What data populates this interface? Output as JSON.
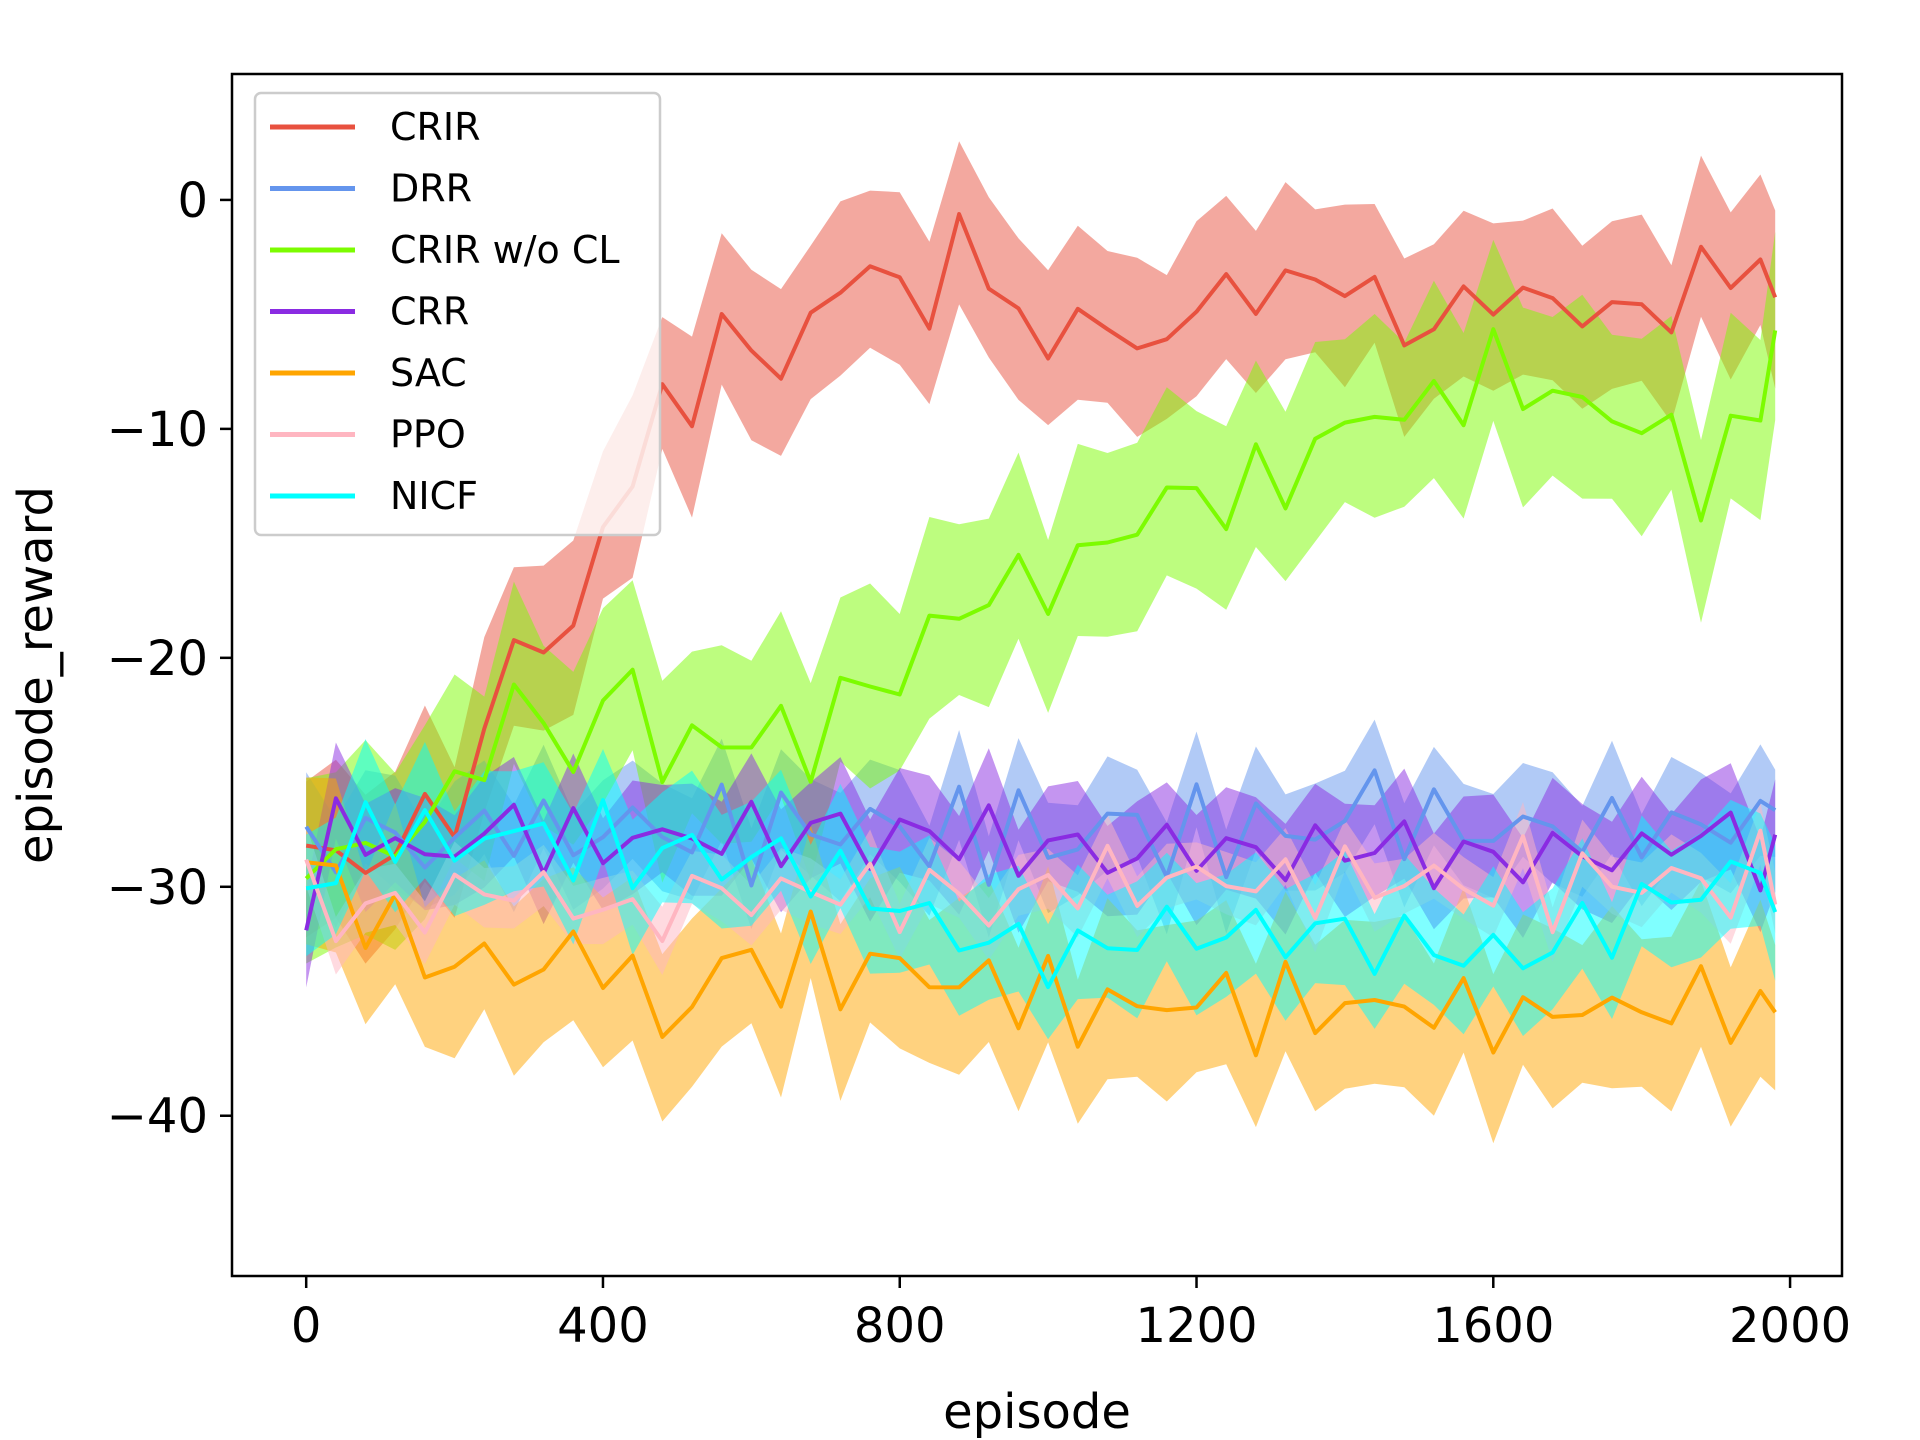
{
  "chart_data": {
    "type": "line",
    "xlabel": "episode",
    "ylabel": "episode_reward",
    "xlim": [
      -100,
      2070
    ],
    "ylim": [
      -47,
      5.5
    ],
    "xticks": [
      0,
      400,
      800,
      1200,
      1600,
      2000
    ],
    "yticks": [
      0,
      -10,
      -20,
      -30,
      -40
    ],
    "xtick_labels": [
      "0",
      "400",
      "800",
      "1200",
      "1600",
      "2000"
    ],
    "ytick_labels": [
      "0",
      "−10",
      "−20",
      "−30",
      "−40"
    ],
    "legend_position": "upper-left",
    "series": [
      {
        "name": "CRIR",
        "color": "#e8513f",
        "band_color": "#e8513f",
        "x": [
          0,
          40,
          80,
          120,
          160,
          200,
          240,
          280,
          320,
          360,
          400,
          440,
          480,
          520,
          560,
          600,
          640,
          680,
          720,
          760,
          800,
          840,
          880,
          920,
          960,
          1000,
          1040,
          1080,
          1120,
          1160,
          1200,
          1240,
          1280,
          1320,
          1360,
          1400,
          1440,
          1480,
          1520,
          1560,
          1600,
          1640,
          1680,
          1720,
          1760,
          1800,
          1840,
          1880,
          1920,
          1960,
          1980
        ],
        "values": [
          -29,
          -28.5,
          -29,
          -28.5,
          -27,
          -26,
          -25,
          -18,
          -20,
          -19,
          -14,
          -12,
          -9.5,
          -8,
          -6.5,
          -6,
          -7.5,
          -5.5,
          -4,
          -2,
          -5,
          -4,
          -1.5,
          -4,
          -4,
          -7.5,
          -5,
          -4.5,
          -8,
          -5,
          -5,
          -4,
          -4,
          -3.5,
          -4,
          -3,
          -4.5,
          -6,
          -5,
          -5,
          -4,
          -4,
          -5,
          -4.5,
          -5,
          -5,
          -4.5,
          -3.5,
          -3,
          -2.5,
          -5
        ],
        "band": 4
      },
      {
        "name": "DRR",
        "color": "#6495ed",
        "band_color": "#6495ed",
        "x": [
          0,
          40,
          80,
          120,
          160,
          200,
          240,
          280,
          320,
          360,
          400,
          440,
          480,
          520,
          560,
          600,
          640,
          680,
          720,
          760,
          800,
          840,
          880,
          920,
          960,
          1000,
          1040,
          1080,
          1120,
          1160,
          1200,
          1240,
          1280,
          1320,
          1360,
          1400,
          1440,
          1480,
          1520,
          1560,
          1600,
          1640,
          1680,
          1720,
          1760,
          1800,
          1840,
          1880,
          1920,
          1960,
          1980
        ],
        "values": [
          -29,
          -28,
          -27.5,
          -28,
          -28.5,
          -28,
          -27.5,
          -27,
          -28,
          -27.5,
          -28,
          -27,
          -27.5,
          -28,
          -27,
          -28,
          -27.5,
          -27,
          -28,
          -27,
          -27.5,
          -28,
          -27.5,
          -28,
          -27,
          -28.5,
          -28,
          -27,
          -27.5,
          -28,
          -27.5,
          -28,
          -27,
          -28,
          -27.5,
          -27,
          -26,
          -27,
          -27.5,
          -27,
          -28,
          -27.5,
          -27,
          -28,
          -27.5,
          -27,
          -28,
          -27,
          -27.5,
          -27,
          -26.5
        ],
        "band": 2.5
      },
      {
        "name": "CRIR w/o CL",
        "color": "#7cfc00",
        "band_color": "#7cfc00",
        "x": [
          0,
          40,
          80,
          120,
          160,
          200,
          240,
          280,
          320,
          360,
          400,
          440,
          480,
          520,
          560,
          600,
          640,
          680,
          720,
          760,
          800,
          840,
          880,
          920,
          960,
          1000,
          1040,
          1080,
          1120,
          1160,
          1200,
          1240,
          1280,
          1320,
          1360,
          1400,
          1440,
          1480,
          1520,
          1560,
          1600,
          1640,
          1680,
          1720,
          1760,
          1800,
          1840,
          1880,
          1920,
          1960,
          1980
        ],
        "values": [
          -29,
          -28,
          -29,
          -28,
          -27,
          -26,
          -24,
          -22,
          -23,
          -24,
          -23,
          -20,
          -25,
          -24,
          -23,
          -24,
          -23,
          -24,
          -22,
          -21,
          -21,
          -19,
          -18,
          -17,
          -17,
          -16.5,
          -16,
          -15,
          -14,
          -13,
          -13,
          -13,
          -12.5,
          -12,
          -11,
          -10,
          -9,
          -9.5,
          -9,
          -8,
          -7.5,
          -8,
          -8.5,
          -9,
          -9.5,
          -9.5,
          -11,
          -12,
          -11,
          -9,
          -5.5
        ],
        "band": 4.5
      },
      {
        "name": "CRR",
        "color": "#8a2be2",
        "band_color": "#8a2be2",
        "x": [
          0,
          40,
          80,
          120,
          160,
          200,
          240,
          280,
          320,
          360,
          400,
          440,
          480,
          520,
          560,
          600,
          640,
          680,
          720,
          760,
          800,
          840,
          880,
          920,
          960,
          1000,
          1040,
          1080,
          1120,
          1160,
          1200,
          1240,
          1280,
          1320,
          1360,
          1400,
          1440,
          1480,
          1520,
          1560,
          1600,
          1640,
          1680,
          1720,
          1760,
          1800,
          1840,
          1880,
          1920,
          1960,
          1980
        ],
        "values": [
          -30,
          -28,
          -27.5,
          -28,
          -29,
          -28.5,
          -27,
          -28,
          -27.5,
          -28,
          -28.5,
          -27.5,
          -28,
          -28,
          -27.5,
          -28,
          -27.5,
          -28,
          -27,
          -28.5,
          -27.5,
          -28,
          -27.5,
          -28,
          -28.5,
          -28,
          -28.5,
          -28.5,
          -29,
          -28,
          -28,
          -29,
          -28,
          -29,
          -28.5,
          -28,
          -28.5,
          -28,
          -29,
          -28.5,
          -29,
          -28.5,
          -29,
          -28,
          -29,
          -28.5,
          -28,
          -27.5,
          -28,
          -28.5,
          -29
        ],
        "band": 2.5
      },
      {
        "name": "SAC",
        "color": "#ffa500",
        "band_color": "#ffa500",
        "x": [
          0,
          40,
          80,
          120,
          160,
          200,
          240,
          280,
          320,
          360,
          400,
          440,
          480,
          520,
          560,
          600,
          640,
          680,
          720,
          760,
          800,
          840,
          880,
          920,
          960,
          1000,
          1040,
          1080,
          1120,
          1160,
          1200,
          1240,
          1280,
          1320,
          1360,
          1400,
          1440,
          1480,
          1520,
          1560,
          1600,
          1640,
          1680,
          1720,
          1760,
          1800,
          1840,
          1880,
          1920,
          1960,
          1980
        ],
        "values": [
          -29,
          -30,
          -31,
          -32,
          -33,
          -33.5,
          -33,
          -34,
          -33,
          -33.5,
          -32.5,
          -34.5,
          -36,
          -35,
          -33.5,
          -33,
          -34,
          -33,
          -33.5,
          -34,
          -33,
          -34,
          -34.5,
          -34,
          -34.5,
          -35,
          -35.5,
          -35,
          -35.5,
          -35,
          -35,
          -35,
          -35.5,
          -35,
          -35.5,
          -35,
          -35.5,
          -35,
          -35.5,
          -35.5,
          -35.5,
          -36,
          -35.5,
          -35,
          -35.5,
          -35.5,
          -35,
          -35,
          -35.5,
          -35,
          -36
        ],
        "band": 4
      },
      {
        "name": "PPO",
        "color": "#ffb6c1",
        "band_color": "#ffb6c1",
        "x": [
          0,
          40,
          80,
          120,
          160,
          200,
          240,
          280,
          320,
          360,
          400,
          440,
          480,
          520,
          560,
          600,
          640,
          680,
          720,
          760,
          800,
          840,
          880,
          920,
          960,
          1000,
          1040,
          1080,
          1120,
          1160,
          1200,
          1240,
          1280,
          1320,
          1360,
          1400,
          1440,
          1480,
          1520,
          1560,
          1600,
          1640,
          1680,
          1720,
          1760,
          1800,
          1840,
          1880,
          1920,
          1960,
          1980
        ],
        "values": [
          -30,
          -31,
          -31.5,
          -30.5,
          -31,
          -30.5,
          -30,
          -30,
          -30.5,
          -30.5,
          -31,
          -31.5,
          -31,
          -30.5,
          -30,
          -30.5,
          -30.5,
          -30,
          -30,
          -30.5,
          -30.5,
          -30,
          -30.5,
          -31,
          -30.5,
          -30,
          -29.5,
          -30,
          -29.5,
          -30,
          -29.5,
          -29.5,
          -30,
          -30,
          -29.5,
          -30,
          -29.5,
          -30,
          -29.5,
          -30,
          -30,
          -29.5,
          -30,
          -30,
          -29.5,
          -30,
          -29.5,
          -30,
          -30,
          -29.5,
          -29
        ],
        "band": 1.5
      },
      {
        "name": "NICF",
        "color": "#00ffff",
        "band_color": "#00ffff",
        "x": [
          0,
          40,
          80,
          120,
          160,
          200,
          240,
          280,
          320,
          360,
          400,
          440,
          480,
          520,
          560,
          600,
          640,
          680,
          720,
          760,
          800,
          840,
          880,
          920,
          960,
          1000,
          1040,
          1080,
          1120,
          1160,
          1200,
          1240,
          1280,
          1320,
          1360,
          1400,
          1440,
          1480,
          1520,
          1560,
          1600,
          1640,
          1680,
          1720,
          1760,
          1800,
          1840,
          1880,
          1920,
          1960,
          1980
        ],
        "values": [
          -30,
          -29,
          -28,
          -27,
          -28,
          -28.5,
          -27.5,
          -28,
          -27.5,
          -28.5,
          -28,
          -28.5,
          -29,
          -28,
          -29,
          -29,
          -28.5,
          -29,
          -30,
          -30,
          -31,
          -31.5,
          -32,
          -32.5,
          -32.5,
          -33,
          -33,
          -32.5,
          -32,
          -32,
          -32,
          -32,
          -32,
          -32,
          -32,
          -32,
          -32.5,
          -32.5,
          -32.5,
          -33,
          -33,
          -33,
          -32.5,
          -32,
          -31.5,
          -31,
          -30.5,
          -30,
          -29.5,
          -29.5,
          -30
        ],
        "band": 3
      }
    ]
  }
}
